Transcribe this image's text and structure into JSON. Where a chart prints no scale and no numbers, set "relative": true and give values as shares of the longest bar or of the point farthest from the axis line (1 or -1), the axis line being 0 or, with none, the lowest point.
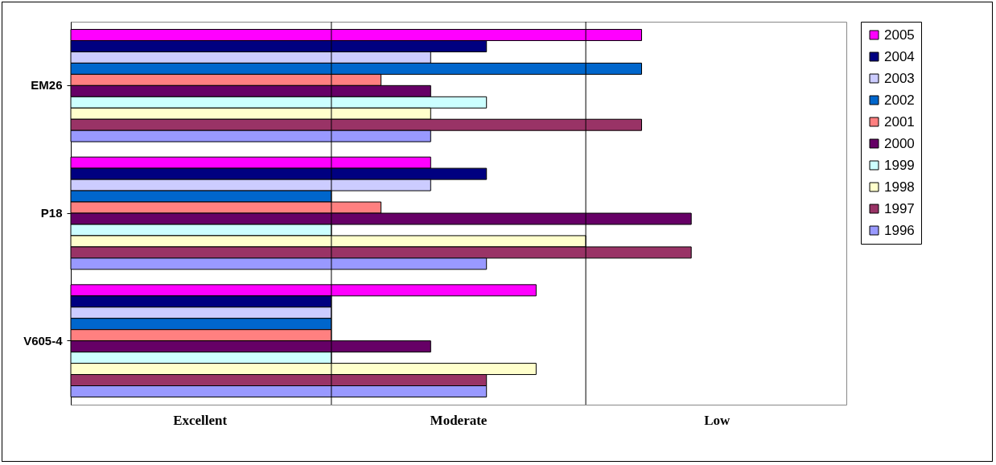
{
  "chart_data": {
    "type": "bar",
    "orientation": "horizontal",
    "relative": true,
    "categories": [
      "EM26",
      "P18",
      "V605-4"
    ],
    "series": [
      {
        "name": "2005",
        "color": "#ff00ff",
        "values": [
          0.92,
          0.58,
          0.75
        ]
      },
      {
        "name": "2004",
        "color": "#000080",
        "values": [
          0.67,
          0.67,
          0.42
        ]
      },
      {
        "name": "2003",
        "color": "#ccccff",
        "values": [
          0.58,
          0.58,
          0.42
        ]
      },
      {
        "name": "2002",
        "color": "#0066cc",
        "values": [
          0.92,
          0.42,
          0.42
        ]
      },
      {
        "name": "2001",
        "color": "#ff8080",
        "values": [
          0.5,
          0.5,
          0.42
        ]
      },
      {
        "name": "2000",
        "color": "#660066",
        "values": [
          0.58,
          1,
          0.58
        ]
      },
      {
        "name": "1999",
        "color": "#ccffff",
        "values": [
          0.67,
          0.42,
          0.42
        ]
      },
      {
        "name": "1998",
        "color": "#ffffcc",
        "values": [
          0.58,
          0.83,
          0.75
        ]
      },
      {
        "name": "1997",
        "color": "#993366",
        "values": [
          0.92,
          1,
          0.67
        ]
      },
      {
        "name": "1996",
        "color": "#9999ff",
        "values": [
          0.58,
          0.67,
          0.67
        ]
      }
    ],
    "annotations": [
      "Excellent",
      "Moderate",
      "Low"
    ],
    "ref_lines": [
      {
        "axis": "x",
        "value": 0.42
      },
      {
        "axis": "x",
        "value": 0.83
      }
    ],
    "legend": "right"
  }
}
